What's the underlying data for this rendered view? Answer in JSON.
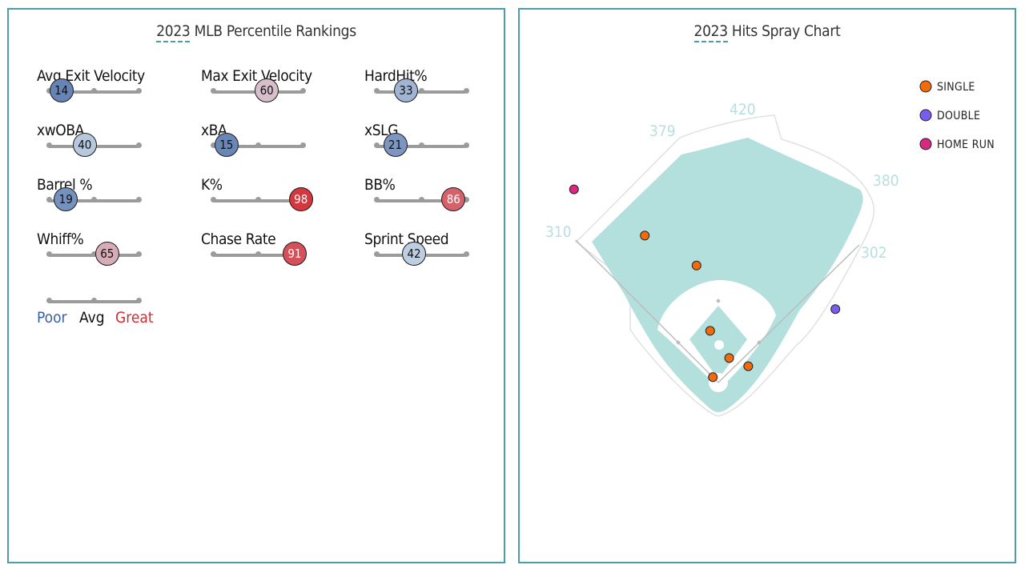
{
  "left_panel": {
    "title_year": "2023",
    "title_rest": " MLB Percentile Rankings",
    "metrics": [
      {
        "label": "Avg Exit Velocity",
        "value": 14
      },
      {
        "label": "Max Exit Velocity",
        "value": 60
      },
      {
        "label": "HardHit%",
        "value": 33
      },
      {
        "label": "xwOBA",
        "value": 40
      },
      {
        "label": "xBA",
        "value": 15
      },
      {
        "label": "xSLG",
        "value": 21
      },
      {
        "label": "Barrel %",
        "value": 19
      },
      {
        "label": "K%",
        "value": 98
      },
      {
        "label": "BB%",
        "value": 86
      },
      {
        "label": "Whiff%",
        "value": 65
      },
      {
        "label": "Chase Rate",
        "value": 91
      },
      {
        "label": "Sprint Speed",
        "value": 42
      }
    ],
    "scale_legend": {
      "poor": "Poor",
      "avg": "Avg",
      "great": "Great"
    },
    "colors": {
      "poor": "#3a5fa0",
      "great": "#d22d2d"
    }
  },
  "right_panel": {
    "title_year": "2023",
    "title_rest": " Hits Spray Chart",
    "distances": {
      "lf": "310",
      "lcf": "379",
      "cf": "420",
      "rcf": "380",
      "rf": "302"
    },
    "legend": [
      {
        "label": "SINGLE",
        "color": "#f26a0a"
      },
      {
        "label": "DOUBLE",
        "color": "#7a5cf0"
      },
      {
        "label": "HOME RUN",
        "color": "#d42a7f"
      }
    ],
    "field_color": "#b3e0dd"
  },
  "chart_data": {
    "type": "scatter",
    "title": "2023 Hits Spray Chart",
    "coordinate_system": "hit location in feet from home plate (x: toward 1B side positive, y: toward center field)",
    "series": [
      {
        "name": "SINGLE",
        "points": [
          [
            -135,
            270
          ],
          [
            -40,
            215
          ],
          [
            55,
            30
          ],
          [
            -15,
            95
          ],
          [
            -10,
            10
          ],
          [
            20,
            45
          ]
        ]
      },
      {
        "name": "DOUBLE",
        "points": [
          [
            215,
            135
          ]
        ]
      },
      {
        "name": "HOME RUN",
        "points": [
          [
            -265,
            355
          ]
        ]
      }
    ],
    "fence_distances_ft": {
      "left_field": 310,
      "left_center": 379,
      "center": 420,
      "right_center": 380,
      "right_field": 302
    }
  }
}
